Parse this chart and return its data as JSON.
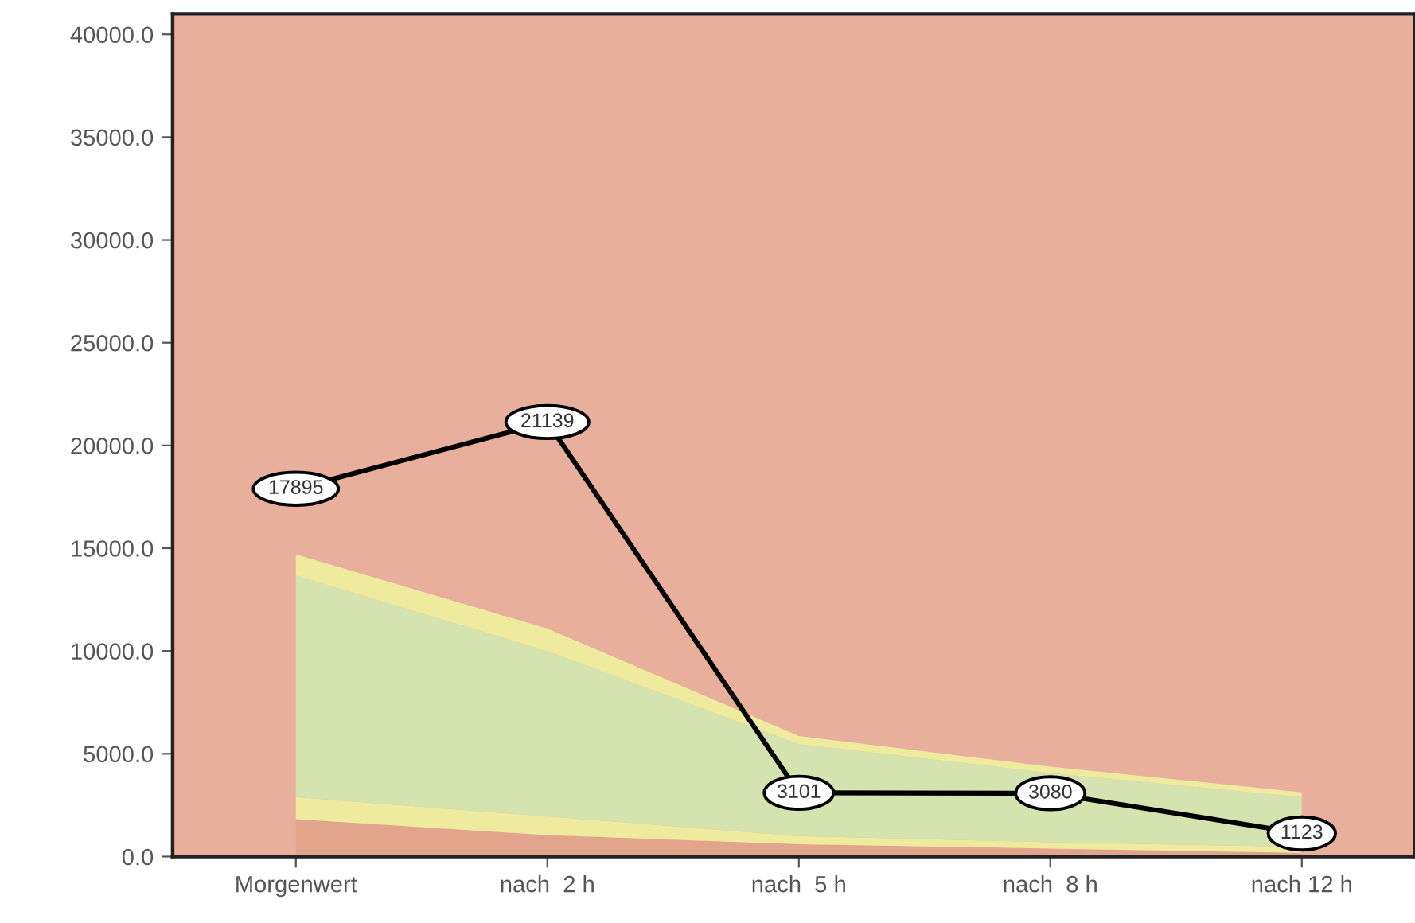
{
  "chart_data": {
    "type": "line",
    "categories": [
      "Morgenwert",
      "nach  2 h",
      "nach  5 h",
      "nach  8 h",
      "nach 12 h"
    ],
    "stacked": true,
    "ylim": [
      0,
      41000
    ],
    "yticks": [
      {
        "value": 0,
        "label": "0.0"
      },
      {
        "value": 5000,
        "label": "5000.0"
      },
      {
        "value": 10000,
        "label": "10000.0"
      },
      {
        "value": 15000,
        "label": "15000.0"
      },
      {
        "value": 20000,
        "label": "20000.0"
      },
      {
        "value": 25000,
        "label": "25000.0"
      },
      {
        "value": 30000,
        "label": "30000.0"
      },
      {
        "value": 35000,
        "label": "35000.0"
      },
      {
        "value": 40000,
        "label": "40000.0"
      }
    ],
    "grid": false,
    "legend": false,
    "line_style": "solid",
    "bands": [
      {
        "axis": "y",
        "from": 0,
        "to": 41000,
        "color": "#e8b09c"
      }
    ],
    "series": [
      {
        "type": "area",
        "color": "#e3a48e",
        "values": [
          1820,
          1040,
          600,
          390,
          180
        ]
      },
      {
        "type": "area",
        "color": "#eeeb9e",
        "values": [
          1070,
          910,
          400,
          310,
          290
        ]
      },
      {
        "type": "area",
        "color": "#d4e3b0",
        "values": [
          10780,
          8050,
          4470,
          3360,
          2420
        ]
      },
      {
        "type": "area",
        "color": "#eeeb9e",
        "values": [
          1030,
          1090,
          390,
          310,
          240
        ]
      },
      {
        "color": "#000000",
        "values": [
          17895,
          21139,
          3101,
          3080,
          1123
        ],
        "value_labels": [
          "17895",
          "21139",
          "3101",
          "3080",
          "1123"
        ]
      }
    ]
  }
}
